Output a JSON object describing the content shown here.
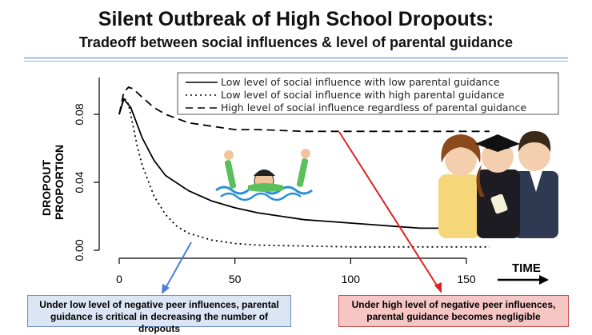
{
  "slide": {
    "title": "Silent Outbreak of High School Dropouts:",
    "subtitle": "Tradeoff between social influences & level of parental guidance",
    "note_left": "Under low level of negative peer influences, parental guidance is critical in decreasing the number of dropouts",
    "note_right": "Under high level of negative peer influences, parental guidance becomes negligible",
    "accent_blue": "#4a7fd4",
    "accent_red": "#e02020"
  },
  "chart_data": {
    "type": "line",
    "title": "",
    "xlabel": "TIME",
    "ylabel_lines": [
      "DROPOUT",
      "PROPORTION"
    ],
    "xlim": [
      0,
      160
    ],
    "ylim": [
      0,
      0.1
    ],
    "x_ticks": [
      "0",
      "50",
      "100",
      "150"
    ],
    "y_ticks": [
      "0.00",
      "0.04",
      "0.08"
    ],
    "legend_position": "top-right",
    "series": [
      {
        "name": "Low level of social influence with low parental guidance",
        "style": "solid",
        "x": [
          0,
          2,
          5,
          10,
          15,
          20,
          30,
          40,
          50,
          60,
          70,
          80,
          90,
          100,
          110,
          120,
          130,
          140,
          150
        ],
        "y": [
          0.08,
          0.089,
          0.084,
          0.066,
          0.053,
          0.044,
          0.035,
          0.029,
          0.025,
          0.022,
          0.02,
          0.018,
          0.017,
          0.016,
          0.015,
          0.014,
          0.013,
          0.013,
          0.012
        ]
      },
      {
        "name": "Low level of social influence with high parental guidance",
        "style": "dotted",
        "x": [
          0,
          2,
          4,
          6,
          8,
          10,
          15,
          20,
          25,
          30,
          40,
          50,
          60,
          80,
          100,
          120,
          140,
          160
        ],
        "y": [
          0.08,
          0.09,
          0.086,
          0.073,
          0.06,
          0.05,
          0.032,
          0.021,
          0.014,
          0.01,
          0.006,
          0.004,
          0.003,
          0.0025,
          0.002,
          0.002,
          0.002,
          0.002
        ]
      },
      {
        "name": "High level of social influence regardless of parental guidance",
        "style": "dashed",
        "x": [
          0,
          2,
          4,
          6,
          10,
          15,
          20,
          30,
          40,
          50,
          60,
          80,
          100,
          120,
          140,
          160
        ],
        "y": [
          0.08,
          0.093,
          0.096,
          0.095,
          0.09,
          0.084,
          0.08,
          0.075,
          0.073,
          0.071,
          0.071,
          0.07,
          0.07,
          0.07,
          0.07,
          0.07
        ]
      }
    ]
  }
}
